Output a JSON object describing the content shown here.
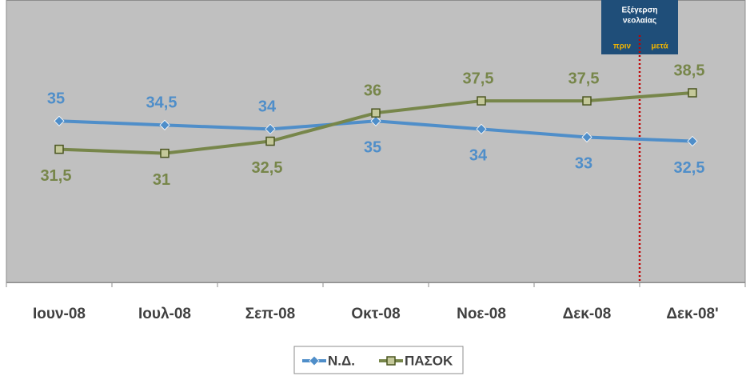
{
  "chart_data": {
    "type": "line",
    "categories": [
      "Ιουν-08",
      "Ιουλ-08",
      "Σεπ-08",
      "Οκτ-08",
      "Νοε-08",
      "Δεκ-08",
      "Δεκ-08'"
    ],
    "series": [
      {
        "name": "Ν.Δ.",
        "color": "#4f8ec9",
        "marker": "diamond",
        "values": [
          35,
          34.5,
          34,
          35,
          34,
          33,
          32.5
        ],
        "value_labels": [
          "35",
          "34,5",
          "34",
          "35",
          "34",
          "33",
          "32,5"
        ]
      },
      {
        "name": "ΠΑΣΟΚ",
        "color": "#77864a",
        "marker": "square",
        "values": [
          31.5,
          31,
          32.5,
          36,
          37.5,
          37.5,
          38.5
        ],
        "value_labels": [
          "31,5",
          "31",
          "32,5",
          "36",
          "37,5",
          "37,5",
          "38,5"
        ]
      }
    ],
    "ylim": [
      15,
      50
    ],
    "annotation": {
      "lines": [
        "Εξέγερση",
        "νεολαίας"
      ],
      "before": "πριν",
      "after": "μετά"
    },
    "legend": "bottom"
  }
}
